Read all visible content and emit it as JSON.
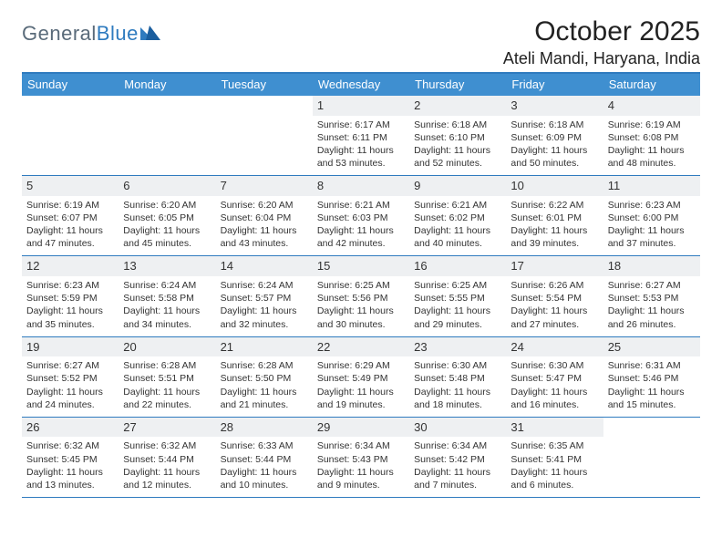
{
  "brand": {
    "part1": "General",
    "part2": "Blue"
  },
  "title": "October 2025",
  "location": "Ateli Mandi, Haryana, India",
  "colors": {
    "header_bar": "#3f8fd0",
    "border": "#2f7bbf",
    "daynum_bg": "#eef0f2",
    "text": "#333333",
    "bg": "#ffffff"
  },
  "day_labels": [
    "Sunday",
    "Monday",
    "Tuesday",
    "Wednesday",
    "Thursday",
    "Friday",
    "Saturday"
  ],
  "weeks": [
    [
      null,
      null,
      null,
      {
        "n": "1",
        "sr": "Sunrise: 6:17 AM",
        "ss": "Sunset: 6:11 PM",
        "dl": "Daylight: 11 hours and 53 minutes."
      },
      {
        "n": "2",
        "sr": "Sunrise: 6:18 AM",
        "ss": "Sunset: 6:10 PM",
        "dl": "Daylight: 11 hours and 52 minutes."
      },
      {
        "n": "3",
        "sr": "Sunrise: 6:18 AM",
        "ss": "Sunset: 6:09 PM",
        "dl": "Daylight: 11 hours and 50 minutes."
      },
      {
        "n": "4",
        "sr": "Sunrise: 6:19 AM",
        "ss": "Sunset: 6:08 PM",
        "dl": "Daylight: 11 hours and 48 minutes."
      }
    ],
    [
      {
        "n": "5",
        "sr": "Sunrise: 6:19 AM",
        "ss": "Sunset: 6:07 PM",
        "dl": "Daylight: 11 hours and 47 minutes."
      },
      {
        "n": "6",
        "sr": "Sunrise: 6:20 AM",
        "ss": "Sunset: 6:05 PM",
        "dl": "Daylight: 11 hours and 45 minutes."
      },
      {
        "n": "7",
        "sr": "Sunrise: 6:20 AM",
        "ss": "Sunset: 6:04 PM",
        "dl": "Daylight: 11 hours and 43 minutes."
      },
      {
        "n": "8",
        "sr": "Sunrise: 6:21 AM",
        "ss": "Sunset: 6:03 PM",
        "dl": "Daylight: 11 hours and 42 minutes."
      },
      {
        "n": "9",
        "sr": "Sunrise: 6:21 AM",
        "ss": "Sunset: 6:02 PM",
        "dl": "Daylight: 11 hours and 40 minutes."
      },
      {
        "n": "10",
        "sr": "Sunrise: 6:22 AM",
        "ss": "Sunset: 6:01 PM",
        "dl": "Daylight: 11 hours and 39 minutes."
      },
      {
        "n": "11",
        "sr": "Sunrise: 6:23 AM",
        "ss": "Sunset: 6:00 PM",
        "dl": "Daylight: 11 hours and 37 minutes."
      }
    ],
    [
      {
        "n": "12",
        "sr": "Sunrise: 6:23 AM",
        "ss": "Sunset: 5:59 PM",
        "dl": "Daylight: 11 hours and 35 minutes."
      },
      {
        "n": "13",
        "sr": "Sunrise: 6:24 AM",
        "ss": "Sunset: 5:58 PM",
        "dl": "Daylight: 11 hours and 34 minutes."
      },
      {
        "n": "14",
        "sr": "Sunrise: 6:24 AM",
        "ss": "Sunset: 5:57 PM",
        "dl": "Daylight: 11 hours and 32 minutes."
      },
      {
        "n": "15",
        "sr": "Sunrise: 6:25 AM",
        "ss": "Sunset: 5:56 PM",
        "dl": "Daylight: 11 hours and 30 minutes."
      },
      {
        "n": "16",
        "sr": "Sunrise: 6:25 AM",
        "ss": "Sunset: 5:55 PM",
        "dl": "Daylight: 11 hours and 29 minutes."
      },
      {
        "n": "17",
        "sr": "Sunrise: 6:26 AM",
        "ss": "Sunset: 5:54 PM",
        "dl": "Daylight: 11 hours and 27 minutes."
      },
      {
        "n": "18",
        "sr": "Sunrise: 6:27 AM",
        "ss": "Sunset: 5:53 PM",
        "dl": "Daylight: 11 hours and 26 minutes."
      }
    ],
    [
      {
        "n": "19",
        "sr": "Sunrise: 6:27 AM",
        "ss": "Sunset: 5:52 PM",
        "dl": "Daylight: 11 hours and 24 minutes."
      },
      {
        "n": "20",
        "sr": "Sunrise: 6:28 AM",
        "ss": "Sunset: 5:51 PM",
        "dl": "Daylight: 11 hours and 22 minutes."
      },
      {
        "n": "21",
        "sr": "Sunrise: 6:28 AM",
        "ss": "Sunset: 5:50 PM",
        "dl": "Daylight: 11 hours and 21 minutes."
      },
      {
        "n": "22",
        "sr": "Sunrise: 6:29 AM",
        "ss": "Sunset: 5:49 PM",
        "dl": "Daylight: 11 hours and 19 minutes."
      },
      {
        "n": "23",
        "sr": "Sunrise: 6:30 AM",
        "ss": "Sunset: 5:48 PM",
        "dl": "Daylight: 11 hours and 18 minutes."
      },
      {
        "n": "24",
        "sr": "Sunrise: 6:30 AM",
        "ss": "Sunset: 5:47 PM",
        "dl": "Daylight: 11 hours and 16 minutes."
      },
      {
        "n": "25",
        "sr": "Sunrise: 6:31 AM",
        "ss": "Sunset: 5:46 PM",
        "dl": "Daylight: 11 hours and 15 minutes."
      }
    ],
    [
      {
        "n": "26",
        "sr": "Sunrise: 6:32 AM",
        "ss": "Sunset: 5:45 PM",
        "dl": "Daylight: 11 hours and 13 minutes."
      },
      {
        "n": "27",
        "sr": "Sunrise: 6:32 AM",
        "ss": "Sunset: 5:44 PM",
        "dl": "Daylight: 11 hours and 12 minutes."
      },
      {
        "n": "28",
        "sr": "Sunrise: 6:33 AM",
        "ss": "Sunset: 5:44 PM",
        "dl": "Daylight: 11 hours and 10 minutes."
      },
      {
        "n": "29",
        "sr": "Sunrise: 6:34 AM",
        "ss": "Sunset: 5:43 PM",
        "dl": "Daylight: 11 hours and 9 minutes."
      },
      {
        "n": "30",
        "sr": "Sunrise: 6:34 AM",
        "ss": "Sunset: 5:42 PM",
        "dl": "Daylight: 11 hours and 7 minutes."
      },
      {
        "n": "31",
        "sr": "Sunrise: 6:35 AM",
        "ss": "Sunset: 5:41 PM",
        "dl": "Daylight: 11 hours and 6 minutes."
      },
      null
    ]
  ]
}
